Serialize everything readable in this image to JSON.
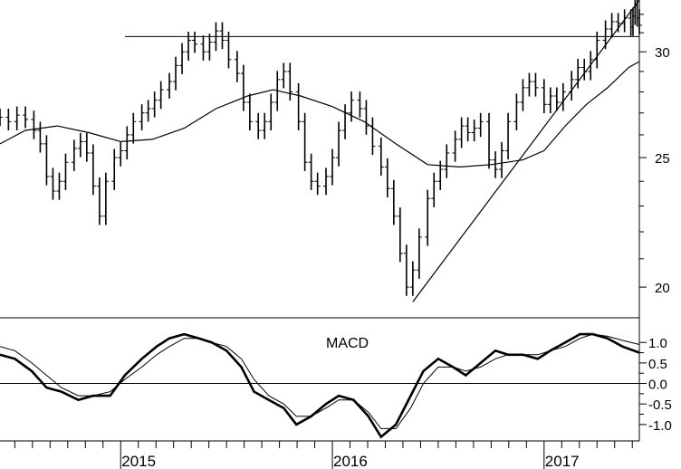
{
  "chart_data": [
    {
      "type": "bar",
      "subtype": "ohlc-price",
      "title": "",
      "ylim": [
        19.0,
        32.8
      ],
      "yscale": "log",
      "ytick_labels": [
        "20",
        "25",
        "30"
      ],
      "ytick_values": [
        20,
        25,
        30
      ],
      "xlim": [
        2014.43,
        2017.45
      ],
      "xtick_labels": [
        "2015",
        "2016",
        "2017"
      ],
      "xtick_values": [
        2015.0,
        2016.0,
        2017.0
      ],
      "moving_average_color": "#000000",
      "price_bars_color": "#000000",
      "price_points": [
        [
          2014.43,
          26.8
        ],
        [
          2014.47,
          26.6
        ],
        [
          2014.51,
          26.9
        ],
        [
          2014.55,
          26.7
        ],
        [
          2014.59,
          26.2
        ],
        [
          2014.62,
          25.6
        ],
        [
          2014.65,
          24.2
        ],
        [
          2014.68,
          23.6
        ],
        [
          2014.71,
          24.0
        ],
        [
          2014.74,
          24.8
        ],
        [
          2014.78,
          25.4
        ],
        [
          2014.81,
          25.7
        ],
        [
          2014.84,
          25.2
        ],
        [
          2014.87,
          23.8
        ],
        [
          2014.9,
          22.6
        ],
        [
          2014.93,
          24.0
        ],
        [
          2014.97,
          25.0
        ],
        [
          2015.0,
          25.3
        ],
        [
          2015.03,
          26.0
        ],
        [
          2015.06,
          26.6
        ],
        [
          2015.1,
          27.0
        ],
        [
          2015.13,
          27.2
        ],
        [
          2015.16,
          27.6
        ],
        [
          2015.19,
          28.1
        ],
        [
          2015.23,
          28.5
        ],
        [
          2015.26,
          29.3
        ],
        [
          2015.29,
          30.0
        ],
        [
          2015.32,
          30.6
        ],
        [
          2015.35,
          30.4
        ],
        [
          2015.39,
          30.0
        ],
        [
          2015.42,
          30.5
        ],
        [
          2015.45,
          31.1
        ],
        [
          2015.48,
          30.6
        ],
        [
          2015.51,
          29.6
        ],
        [
          2015.55,
          28.9
        ],
        [
          2015.58,
          27.5
        ],
        [
          2015.61,
          26.6
        ],
        [
          2015.65,
          26.2
        ],
        [
          2015.68,
          26.6
        ],
        [
          2015.71,
          27.5
        ],
        [
          2015.74,
          28.6
        ],
        [
          2015.77,
          29.0
        ],
        [
          2015.8,
          28.0
        ],
        [
          2015.84,
          26.6
        ],
        [
          2015.87,
          24.8
        ],
        [
          2015.9,
          24.0
        ],
        [
          2015.93,
          23.8
        ],
        [
          2015.97,
          24.2
        ],
        [
          2016.0,
          25.0
        ],
        [
          2016.03,
          26.2
        ],
        [
          2016.06,
          27.0
        ],
        [
          2016.09,
          27.6
        ],
        [
          2016.13,
          27.2
        ],
        [
          2016.16,
          26.4
        ],
        [
          2016.19,
          25.5
        ],
        [
          2016.23,
          24.6
        ],
        [
          2016.26,
          23.7
        ],
        [
          2016.29,
          22.6
        ],
        [
          2016.32,
          21.2
        ],
        [
          2016.35,
          20.0
        ],
        [
          2016.38,
          20.6
        ],
        [
          2016.41,
          21.8
        ],
        [
          2016.45,
          23.3
        ],
        [
          2016.48,
          24.0
        ],
        [
          2016.51,
          24.5
        ],
        [
          2016.54,
          25.2
        ],
        [
          2016.58,
          25.8
        ],
        [
          2016.61,
          26.4
        ],
        [
          2016.64,
          26.1
        ],
        [
          2016.67,
          26.3
        ],
        [
          2016.7,
          26.6
        ],
        [
          2016.74,
          24.9
        ],
        [
          2016.77,
          24.5
        ],
        [
          2016.8,
          25.3
        ],
        [
          2016.83,
          26.6
        ],
        [
          2016.87,
          27.5
        ],
        [
          2016.9,
          28.2
        ],
        [
          2016.93,
          28.5
        ],
        [
          2016.96,
          28.2
        ],
        [
          2017.0,
          27.4
        ],
        [
          2017.03,
          27.8
        ],
        [
          2017.06,
          27.5
        ],
        [
          2017.09,
          28.0
        ],
        [
          2017.13,
          28.6
        ],
        [
          2017.16,
          29.2
        ],
        [
          2017.19,
          29.0
        ],
        [
          2017.22,
          29.6
        ],
        [
          2017.25,
          30.6
        ],
        [
          2017.29,
          31.2
        ],
        [
          2017.32,
          31.6
        ],
        [
          2017.35,
          31.5
        ],
        [
          2017.38,
          31.8
        ],
        [
          2017.41,
          31.3
        ],
        [
          2017.42,
          31.9
        ],
        [
          2017.43,
          32.5
        ],
        [
          2017.44,
          31.8
        ],
        [
          2017.45,
          31.4
        ]
      ],
      "moving_average": [
        [
          2014.43,
          25.6
        ],
        [
          2014.55,
          26.2
        ],
        [
          2014.7,
          26.4
        ],
        [
          2014.85,
          26.1
        ],
        [
          2015.0,
          25.7
        ],
        [
          2015.15,
          25.8
        ],
        [
          2015.3,
          26.3
        ],
        [
          2015.45,
          27.2
        ],
        [
          2015.6,
          27.8
        ],
        [
          2015.72,
          28.1
        ],
        [
          2015.85,
          27.8
        ],
        [
          2016.0,
          27.3
        ],
        [
          2016.15,
          26.6
        ],
        [
          2016.3,
          25.6
        ],
        [
          2016.45,
          24.7
        ],
        [
          2016.6,
          24.6
        ],
        [
          2016.75,
          24.7
        ],
        [
          2016.9,
          24.9
        ],
        [
          2017.0,
          25.3
        ],
        [
          2017.1,
          26.4
        ],
        [
          2017.2,
          27.4
        ],
        [
          2017.3,
          28.2
        ],
        [
          2017.4,
          29.2
        ],
        [
          2017.45,
          29.5
        ]
      ],
      "horizontal_line": 30.8,
      "trendline": [
        [
          2016.38,
          19.5
        ],
        [
          2017.45,
          34.2
        ]
      ]
    },
    {
      "type": "line",
      "title": "MACD",
      "ylim": [
        -1.4,
        1.6
      ],
      "ytick_labels": [
        "1.0",
        "0.5",
        "0.0",
        "-0.5",
        "-1.0"
      ],
      "ytick_values": [
        1.0,
        0.5,
        0.0,
        -0.5,
        -1.0
      ],
      "zero_line": 0.0,
      "series": [
        {
          "name": "",
          "style": "thick",
          "x": [
            2014.43,
            2014.5,
            2014.58,
            2014.65,
            2014.72,
            2014.8,
            2014.87,
            2014.95,
            2015.02,
            2015.1,
            2015.17,
            2015.23,
            2015.3,
            2015.37,
            2015.43,
            2015.5,
            2015.57,
            2015.63,
            2015.7,
            2015.77,
            2015.83,
            2015.9,
            2015.97,
            2016.03,
            2016.1,
            2016.17,
            2016.23,
            2016.3,
            2016.37,
            2016.43,
            2016.5,
            2016.57,
            2016.63,
            2016.7,
            2016.77,
            2016.83,
            2016.9,
            2016.97,
            2017.03,
            2017.1,
            2017.17,
            2017.23,
            2017.3,
            2017.37,
            2017.45
          ],
          "values": [
            0.7,
            0.6,
            0.3,
            -0.1,
            -0.2,
            -0.4,
            -0.3,
            -0.3,
            0.2,
            0.6,
            0.9,
            1.1,
            1.2,
            1.1,
            1.0,
            0.8,
            0.4,
            -0.2,
            -0.4,
            -0.6,
            -1.0,
            -0.8,
            -0.5,
            -0.3,
            -0.4,
            -0.8,
            -1.3,
            -1.0,
            -0.3,
            0.3,
            0.6,
            0.4,
            0.2,
            0.5,
            0.8,
            0.7,
            0.7,
            0.6,
            0.8,
            1.0,
            1.2,
            1.2,
            1.1,
            0.9,
            0.75
          ]
        },
        {
          "name": "",
          "style": "thin",
          "x": [
            2014.43,
            2014.5,
            2014.58,
            2014.65,
            2014.72,
            2014.8,
            2014.87,
            2014.95,
            2015.02,
            2015.1,
            2015.17,
            2015.23,
            2015.3,
            2015.37,
            2015.43,
            2015.5,
            2015.57,
            2015.63,
            2015.7,
            2015.77,
            2015.83,
            2015.9,
            2015.97,
            2016.03,
            2016.1,
            2016.17,
            2016.23,
            2016.3,
            2016.37,
            2016.43,
            2016.5,
            2016.57,
            2016.63,
            2016.7,
            2016.77,
            2016.83,
            2016.9,
            2016.97,
            2017.03,
            2017.1,
            2017.17,
            2017.23,
            2017.3,
            2017.37,
            2017.45
          ],
          "values": [
            0.9,
            0.8,
            0.5,
            0.2,
            -0.1,
            -0.3,
            -0.3,
            -0.2,
            0.1,
            0.4,
            0.7,
            0.9,
            1.1,
            1.1,
            1.0,
            0.9,
            0.6,
            0.1,
            -0.3,
            -0.5,
            -0.8,
            -0.8,
            -0.6,
            -0.4,
            -0.4,
            -0.7,
            -1.1,
            -1.1,
            -0.6,
            0.0,
            0.4,
            0.4,
            0.3,
            0.4,
            0.6,
            0.7,
            0.7,
            0.7,
            0.8,
            0.9,
            1.1,
            1.2,
            1.15,
            1.05,
            0.95
          ]
        }
      ]
    }
  ]
}
